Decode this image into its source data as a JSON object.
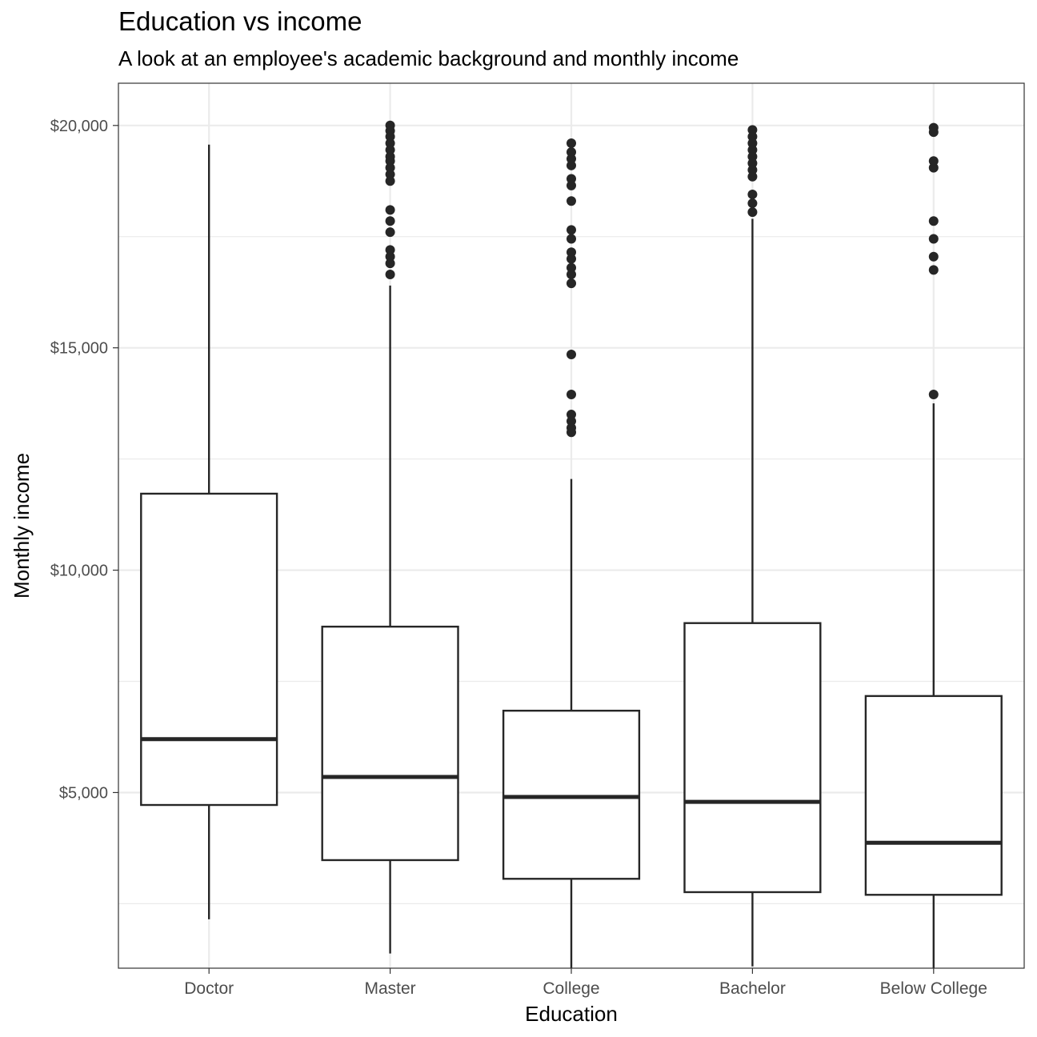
{
  "chart_data": {
    "type": "boxplot",
    "title": "Education vs income",
    "subtitle": "A look at an employee's academic background and monthly income",
    "xlabel": "Education",
    "ylabel": "Monthly income",
    "ylim": [
      1050,
      20950
    ],
    "y_ticks": [
      5000,
      10000,
      15000,
      20000
    ],
    "y_tick_labels": [
      "$5,000",
      "$10,000",
      "$15,000",
      "$20,000"
    ],
    "y_minor_ticks": [
      2500,
      7500,
      12500,
      17500
    ],
    "grid": true,
    "categories": [
      "Doctor",
      "Master",
      "College",
      "Bachelor",
      "Below College"
    ],
    "boxes": [
      {
        "category": "Doctor",
        "whisker_low": 2150,
        "q1": 4720,
        "median": 6200,
        "q3": 11720,
        "whisker_high": 19570,
        "outliers": []
      },
      {
        "category": "Master",
        "whisker_low": 1380,
        "q1": 3480,
        "median": 5350,
        "q3": 8730,
        "whisker_high": 16400,
        "outliers": [
          20000,
          19880,
          19750,
          19600,
          19450,
          19300,
          19200,
          19050,
          18900,
          18750,
          18100,
          17850,
          17600,
          17200,
          17050,
          16900,
          16650
        ]
      },
      {
        "category": "College",
        "whisker_low": 1060,
        "q1": 3060,
        "median": 4900,
        "q3": 6840,
        "whisker_high": 12050,
        "outliers": [
          19600,
          19400,
          19250,
          19100,
          18800,
          18650,
          18300,
          17650,
          17450,
          17150,
          17000,
          16800,
          16650,
          16450,
          14850,
          13950,
          13500,
          13350,
          13200,
          13100
        ]
      },
      {
        "category": "Bachelor",
        "whisker_low": 1090,
        "q1": 2760,
        "median": 4790,
        "q3": 8810,
        "whisker_high": 17900,
        "outliers": [
          19900,
          19750,
          19600,
          19450,
          19300,
          19150,
          19000,
          18850,
          18450,
          18250,
          18050
        ]
      },
      {
        "category": "Below College",
        "whisker_low": 1051,
        "q1": 2700,
        "median": 3870,
        "q3": 7170,
        "whisker_high": 13750,
        "outliers": [
          19950,
          19850,
          19200,
          19050,
          17850,
          17450,
          17050,
          16750,
          13950
        ]
      }
    ],
    "colors": {
      "box_stroke": "#262626",
      "point": "#262626",
      "grid": "#EBEBEB",
      "panel_border": "#333333"
    }
  }
}
